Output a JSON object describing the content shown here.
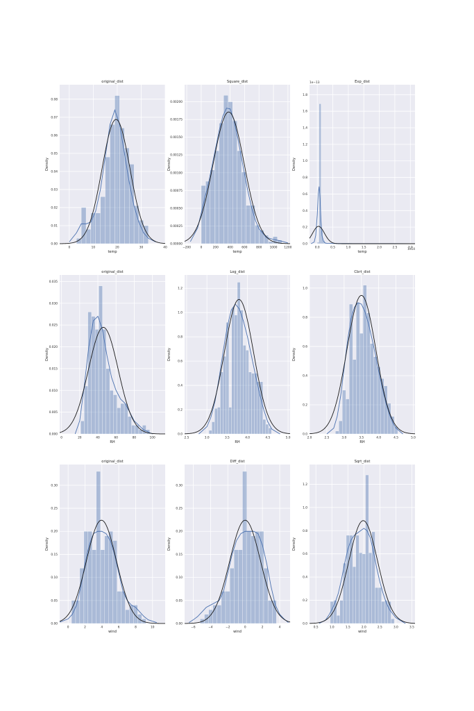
{
  "chart_data": [
    {
      "type": "histogram",
      "title": "original_dist",
      "xlabel": "temp",
      "ylabel": "Density",
      "xlim": [
        -4,
        40
      ],
      "ylim": [
        0,
        0.088
      ],
      "xticks": [
        0,
        10,
        20,
        30,
        40
      ],
      "xtick_labels": [
        "0",
        "10",
        "20",
        "30",
        "40"
      ],
      "yticks": [
        0,
        0.01,
        0.02,
        0.03,
        0.04,
        0.05,
        0.06,
        0.07,
        0.08
      ],
      "ytick_labels": [
        "0.00",
        "0.01",
        "0.02",
        "0.03",
        "0.04",
        "0.05",
        "0.06",
        "0.07",
        "0.08"
      ],
      "x_offset_label": "",
      "y_offset_label": "",
      "bin_edges": [
        3,
        5,
        7,
        9,
        11,
        13,
        15,
        17,
        19,
        21,
        23,
        25,
        27,
        29,
        31,
        33
      ],
      "density": [
        0.003,
        0.02,
        0.008,
        0.017,
        0.017,
        0.026,
        0.048,
        0.066,
        0.082,
        0.064,
        0.053,
        0.044,
        0.021,
        0.013,
        0.01
      ],
      "kde": {
        "x": [
          0,
          3,
          5,
          7,
          9,
          11,
          13,
          15,
          17,
          19,
          21,
          23,
          25,
          27,
          29,
          31,
          33,
          36
        ],
        "y": [
          0.001,
          0.006,
          0.011,
          0.011,
          0.012,
          0.018,
          0.03,
          0.048,
          0.066,
          0.074,
          0.066,
          0.05,
          0.034,
          0.021,
          0.012,
          0.006,
          0.003,
          0.001
        ]
      },
      "normal_fit": {
        "mean": 19.5,
        "std": 5.8
      }
    },
    {
      "type": "histogram",
      "title": "Square_dist",
      "xlabel": "temp",
      "ylabel": "Density",
      "xlim": [
        -230,
        1230
      ],
      "ylim": [
        0,
        0.00224
      ],
      "xticks": [
        -200,
        0,
        200,
        400,
        600,
        800,
        1000,
        1200
      ],
      "xtick_labels": [
        "−200",
        "0",
        "200",
        "400",
        "600",
        "800",
        "1000",
        "1200"
      ],
      "yticks": [
        0,
        0.00025,
        0.0005,
        0.00075,
        0.001,
        0.00125,
        0.0015,
        0.00175,
        0.002
      ],
      "ytick_labels": [
        "0.00000",
        "0.00025",
        "0.00050",
        "0.00075",
        "0.00100",
        "0.00125",
        "0.00150",
        "0.00175",
        "0.00200"
      ],
      "x_offset_label": "",
      "y_offset_label": "",
      "bin_edges": [
        0,
        62,
        124,
        186,
        248,
        310,
        372,
        434,
        496,
        558,
        620,
        682,
        744,
        806,
        868,
        930,
        992,
        1054,
        1116
      ],
      "density": [
        0.00082,
        0.00088,
        0.00104,
        0.00131,
        0.0017,
        0.00209,
        0.002,
        0.00173,
        0.00131,
        0.00101,
        0.00054,
        0.00054,
        0.00026,
        0.00019,
        0.00012,
        3e-05,
        0.0001,
        5e-05
      ],
      "kde": {
        "x": [
          -150,
          -50,
          0,
          50,
          100,
          150,
          200,
          250,
          300,
          350,
          400,
          450,
          500,
          550,
          600,
          650,
          700,
          750,
          800,
          900,
          1000,
          1100,
          1200
        ],
        "y": [
          3e-05,
          0.00022,
          0.00043,
          0.00065,
          0.00085,
          0.0011,
          0.00135,
          0.0016,
          0.0018,
          0.00191,
          0.0019,
          0.00175,
          0.00152,
          0.00125,
          0.00098,
          0.00072,
          0.0005,
          0.00033,
          0.00021,
          9e-05,
          6e-05,
          4e-05,
          1e-05
        ]
      },
      "normal_fit": {
        "mean": 380,
        "std": 215
      }
    },
    {
      "type": "histogram",
      "title": "Exp_dist",
      "xlabel": "temp",
      "ylabel": "Density",
      "xlim": [
        -2.5,
        31.5
      ],
      "ylim": [
        0,
        1.92
      ],
      "xticks": [
        0,
        5,
        10,
        15,
        20,
        25,
        30
      ],
      "xtick_labels": [
        "0.0",
        "0.5",
        "1.0",
        "1.5",
        "2.0",
        "2.5",
        "3.0"
      ],
      "yticks": [
        0,
        0.2,
        0.4,
        0.6,
        0.8,
        1.0,
        1.2,
        1.4,
        1.6,
        1.8
      ],
      "ytick_labels": [
        "0.0",
        "0.2",
        "0.4",
        "0.6",
        "0.8",
        "1.0",
        "1.2",
        "1.4",
        "1.6",
        "1.8"
      ],
      "x_offset_label": "1e14",
      "y_offset_label": "1e−13",
      "bin_edges": [
        0,
        0.6,
        1.2,
        1.8,
        2.4,
        3.0,
        3.6,
        4.2,
        4.8,
        5.4,
        6.0,
        6.6,
        7.2,
        7.8
      ],
      "density": [
        0.02,
        1.69,
        0.16,
        0.04,
        0.015,
        0.01,
        0.006,
        0.004,
        0.003,
        0.002,
        0.002,
        0.001,
        0.003
      ],
      "kde": {
        "x": [
          -2,
          -1,
          -0.5,
          0,
          0.3,
          0.6,
          0.9,
          1.2,
          1.5,
          2,
          2.5,
          3,
          4,
          5,
          7,
          10,
          15,
          20,
          25,
          30
        ],
        "y": [
          0.0,
          0.02,
          0.1,
          0.35,
          0.6,
          0.69,
          0.55,
          0.28,
          0.1,
          0.03,
          0.01,
          0.005,
          0.004,
          0.003,
          0.002,
          0.002,
          0.001,
          0.001,
          0.001,
          0.0
        ]
      },
      "normal_fit": {
        "mean": 0.4,
        "std": 1.9
      }
    },
    {
      "type": "histogram",
      "title": "original_dist",
      "xlabel": "RH",
      "ylabel": "Density",
      "xlim": [
        -2,
        114
      ],
      "ylim": [
        0,
        0.0365
      ],
      "xticks": [
        0,
        20,
        40,
        60,
        80,
        100
      ],
      "xtick_labels": [
        "0",
        "20",
        "40",
        "60",
        "80",
        "100"
      ],
      "yticks": [
        0,
        0.005,
        0.01,
        0.015,
        0.02,
        0.025,
        0.03,
        0.035
      ],
      "ytick_labels": [
        "0.000",
        "0.005",
        "0.010",
        "0.015",
        "0.020",
        "0.025",
        "0.030",
        "0.035"
      ],
      "x_offset_label": "",
      "y_offset_label": "",
      "bin_edges": [
        21,
        25,
        29,
        33,
        37,
        41,
        45,
        49,
        53,
        57,
        61,
        65,
        69,
        73,
        77,
        81,
        85,
        89,
        93,
        97
      ],
      "density": [
        0.003,
        0.011,
        0.028,
        0.027,
        0.024,
        0.034,
        0.024,
        0.015,
        0.01,
        0.009,
        0.006,
        0.007,
        0.007,
        0.004,
        0.002,
        0.002,
        0.001,
        0.002,
        0.001
      ],
      "kde": {
        "x": [
          15,
          20,
          25,
          30,
          35,
          40,
          45,
          50,
          55,
          60,
          65,
          70,
          75,
          80,
          85,
          90,
          95,
          100
        ],
        "y": [
          0.0,
          0.003,
          0.011,
          0.02,
          0.026,
          0.027,
          0.024,
          0.018,
          0.013,
          0.01,
          0.008,
          0.007,
          0.005,
          0.003,
          0.002,
          0.001,
          0.0005,
          0.0
        ]
      },
      "normal_fit": {
        "mean": 46,
        "std": 16.3
      }
    },
    {
      "type": "histogram",
      "title": "Log_dist",
      "xlabel": "RH",
      "ylabel": "Density",
      "xlim": [
        2.45,
        5.05
      ],
      "ylim": [
        0,
        1.31
      ],
      "xticks": [
        2.5,
        3.0,
        3.5,
        4.0,
        4.5,
        5.0
      ],
      "xtick_labels": [
        "2.5",
        "3.0",
        "3.5",
        "4.0",
        "4.5",
        "5.0"
      ],
      "yticks": [
        0,
        0.2,
        0.4,
        0.6,
        0.8,
        1.0,
        1.2
      ],
      "ytick_labels": [
        "0.0",
        "0.2",
        "0.4",
        "0.6",
        "0.8",
        "1.0",
        "1.2"
      ],
      "x_offset_label": "",
      "y_offset_label": "",
      "bin_edges": [
        3.05,
        3.12,
        3.19,
        3.26,
        3.33,
        3.4,
        3.47,
        3.54,
        3.61,
        3.68,
        3.75,
        3.82,
        3.89,
        3.96,
        4.03,
        4.1,
        4.17,
        4.24,
        4.31,
        4.38,
        4.45,
        4.52,
        4.59
      ],
      "density": [
        0.03,
        0.1,
        0.21,
        0.22,
        0.51,
        0.64,
        0.92,
        0.22,
        1.04,
        0.98,
        1.25,
        1.02,
        0.73,
        0.69,
        0.51,
        0.5,
        0.5,
        0.43,
        0.43,
        0.12,
        0.08,
        0.05
      ],
      "kde": {
        "x": [
          2.8,
          3.0,
          3.1,
          3.2,
          3.3,
          3.4,
          3.5,
          3.6,
          3.7,
          3.8,
          3.9,
          4.0,
          4.1,
          4.2,
          4.3,
          4.4,
          4.5,
          4.6,
          4.8
        ],
        "y": [
          0.0,
          0.06,
          0.14,
          0.27,
          0.46,
          0.68,
          0.88,
          1.02,
          1.07,
          1.03,
          0.93,
          0.8,
          0.64,
          0.48,
          0.33,
          0.2,
          0.1,
          0.04,
          0.0
        ]
      },
      "normal_fit": {
        "mean": 3.79,
        "std": 0.36
      }
    },
    {
      "type": "histogram",
      "title": "Cbrt_dist",
      "xlabel": "RH",
      "ylabel": "Density",
      "xlim": [
        2.0,
        5.05
      ],
      "ylim": [
        0,
        1.09
      ],
      "xticks": [
        2.0,
        2.5,
        3.0,
        3.5,
        4.0,
        4.5,
        5.0
      ],
      "xtick_labels": [
        "2.0",
        "2.5",
        "3.0",
        "3.5",
        "4.0",
        "4.5",
        "5.0"
      ],
      "yticks": [
        0,
        0.2,
        0.4,
        0.6,
        0.8,
        1.0
      ],
      "ytick_labels": [
        "0.0",
        "0.2",
        "0.4",
        "0.6",
        "0.8",
        "1.0"
      ],
      "x_offset_label": "",
      "y_offset_label": "",
      "bin_edges": [
        2.75,
        2.85,
        2.95,
        3.05,
        3.15,
        3.25,
        3.35,
        3.45,
        3.55,
        3.65,
        3.75,
        3.85,
        3.95,
        4.05,
        4.15,
        4.25,
        4.35,
        4.45,
        4.55
      ],
      "density": [
        0.02,
        0.09,
        0.3,
        0.24,
        0.89,
        0.51,
        0.9,
        0.69,
        1.02,
        0.83,
        0.62,
        0.53,
        0.46,
        0.38,
        0.33,
        0.21,
        0.12,
        0.05
      ],
      "kde": {
        "x": [
          2.5,
          2.7,
          2.8,
          2.9,
          3.0,
          3.1,
          3.2,
          3.3,
          3.4,
          3.5,
          3.6,
          3.7,
          3.8,
          3.9,
          4.0,
          4.1,
          4.2,
          4.3,
          4.4,
          4.5,
          4.7
        ],
        "y": [
          0.0,
          0.04,
          0.12,
          0.26,
          0.45,
          0.64,
          0.79,
          0.87,
          0.9,
          0.89,
          0.84,
          0.76,
          0.66,
          0.55,
          0.43,
          0.32,
          0.22,
          0.14,
          0.08,
          0.04,
          0.0
        ]
      },
      "normal_fit": {
        "mean": 3.5,
        "std": 0.42
      }
    },
    {
      "type": "histogram",
      "title": "original_dist",
      "xlabel": "wind",
      "ylabel": "Density",
      "xlim": [
        -1.0,
        11.5
      ],
      "ylim": [
        0,
        0.345
      ],
      "xticks": [
        0,
        2,
        4,
        6,
        8,
        10
      ],
      "xtick_labels": [
        "0",
        "2",
        "4",
        "6",
        "8",
        "10"
      ],
      "yticks": [
        0,
        0.05,
        0.1,
        0.15,
        0.2,
        0.25,
        0.3
      ],
      "ytick_labels": [
        "0.00",
        "0.05",
        "0.10",
        "0.15",
        "0.20",
        "0.25",
        "0.30"
      ],
      "x_offset_label": "",
      "y_offset_label": "",
      "bin_edges": [
        0.4,
        0.89,
        1.38,
        1.87,
        2.36,
        2.85,
        3.34,
        3.83,
        4.32,
        4.81,
        5.3,
        5.79,
        6.28,
        6.77,
        7.26,
        7.75,
        8.24,
        8.73,
        9.22
      ],
      "density": [
        0.05,
        0.05,
        0.12,
        0.2,
        0.2,
        0.16,
        0.33,
        0.16,
        0.19,
        0.2,
        0.18,
        0.07,
        0.07,
        0.03,
        0.04,
        0.04,
        0.02,
        0.01
      ],
      "kde": {
        "x": [
          -1,
          0,
          0.5,
          1,
          1.5,
          2,
          2.5,
          3,
          3.5,
          4,
          4.5,
          5,
          5.5,
          6,
          6.5,
          7,
          7.5,
          8,
          8.5,
          9,
          9.5,
          10.5
        ],
        "y": [
          0.003,
          0.01,
          0.02,
          0.04,
          0.08,
          0.13,
          0.17,
          0.195,
          0.2,
          0.2,
          0.195,
          0.18,
          0.15,
          0.11,
          0.07,
          0.05,
          0.04,
          0.035,
          0.025,
          0.015,
          0.008,
          0.002
        ]
      },
      "normal_fit": {
        "mean": 3.95,
        "std": 1.78
      }
    },
    {
      "type": "histogram",
      "title": "Diff_dist",
      "xlabel": "wind",
      "ylabel": "Density",
      "xlim": [
        -7.0,
        5.2
      ],
      "ylim": [
        0,
        0.345
      ],
      "xticks": [
        -6,
        -4,
        -2,
        0,
        2,
        4
      ],
      "xtick_labels": [
        "−6",
        "−4",
        "−2",
        "0",
        "2",
        "4"
      ],
      "yticks": [
        0,
        0.05,
        0.1,
        0.15,
        0.2,
        0.25,
        0.3
      ],
      "ytick_labels": [
        "0.00",
        "0.05",
        "0.10",
        "0.15",
        "0.20",
        "0.25",
        "0.30"
      ],
      "x_offset_label": "",
      "y_offset_label": "",
      "bin_edges": [
        -5.2,
        -4.71,
        -4.22,
        -3.73,
        -3.24,
        -2.75,
        -2.26,
        -1.77,
        -1.28,
        -0.79,
        -0.3,
        0.19,
        0.68,
        1.17,
        1.66,
        2.15,
        2.64,
        3.13,
        3.62
      ],
      "density": [
        0.01,
        0.02,
        0.03,
        0.04,
        0.04,
        0.07,
        0.07,
        0.12,
        0.16,
        0.16,
        0.33,
        0.2,
        0.19,
        0.2,
        0.2,
        0.12,
        0.05,
        0.05
      ],
      "kde": {
        "x": [
          -6.5,
          -6,
          -5.5,
          -5,
          -4.5,
          -4,
          -3.5,
          -3,
          -2.5,
          -2,
          -1.5,
          -1,
          -0.5,
          0,
          0.5,
          1,
          1.5,
          2,
          2.5,
          3,
          3.5,
          4,
          4.5,
          5
        ],
        "y": [
          0.002,
          0.008,
          0.015,
          0.025,
          0.035,
          0.04,
          0.045,
          0.05,
          0.07,
          0.11,
          0.15,
          0.18,
          0.195,
          0.2,
          0.2,
          0.2,
          0.195,
          0.17,
          0.13,
          0.08,
          0.04,
          0.02,
          0.01,
          0.002
        ]
      },
      "normal_fit": {
        "mean": 0.0,
        "std": 1.78
      }
    },
    {
      "type": "histogram",
      "title": "Sqrt_dist",
      "xlabel": "wind",
      "ylabel": "Density",
      "xlim": [
        0.3,
        3.6
      ],
      "ylim": [
        0,
        1.37
      ],
      "xticks": [
        0.5,
        1.0,
        1.5,
        2.0,
        2.5,
        3.0,
        3.5
      ],
      "xtick_labels": [
        "0.5",
        "1.0",
        "1.5",
        "2.0",
        "2.5",
        "3.0",
        "3.5"
      ],
      "yticks": [
        0,
        0.2,
        0.4,
        0.6,
        0.8,
        1.0,
        1.2
      ],
      "ytick_labels": [
        "0.0",
        "0.2",
        "0.4",
        "0.6",
        "0.8",
        "1.0",
        "1.2"
      ],
      "x_offset_label": "",
      "y_offset_label": "",
      "bin_edges": [
        0.95,
        1.05,
        1.15,
        1.25,
        1.35,
        1.45,
        1.55,
        1.65,
        1.75,
        1.85,
        1.95,
        2.05,
        2.15,
        2.25,
        2.35,
        2.45,
        2.55,
        2.65,
        2.75,
        2.85,
        2.95
      ],
      "density": [
        0.19,
        0.2,
        0.07,
        0.2,
        0.52,
        0.76,
        0.76,
        0.49,
        0.76,
        0.61,
        0.6,
        1.28,
        0.61,
        0.79,
        0.31,
        0.31,
        0.19,
        0.2,
        0.19,
        0.04
      ],
      "kde": {
        "x": [
          0.6,
          0.8,
          0.9,
          1.0,
          1.1,
          1.2,
          1.3,
          1.4,
          1.5,
          1.6,
          1.7,
          1.8,
          1.9,
          2.0,
          2.1,
          2.2,
          2.3,
          2.4,
          2.5,
          2.6,
          2.7,
          2.8,
          3.0,
          3.3
        ],
        "y": [
          0.0,
          0.03,
          0.07,
          0.12,
          0.18,
          0.26,
          0.38,
          0.52,
          0.64,
          0.72,
          0.76,
          0.78,
          0.8,
          0.82,
          0.8,
          0.74,
          0.62,
          0.48,
          0.36,
          0.26,
          0.18,
          0.12,
          0.05,
          0.0
        ]
      },
      "normal_fit": {
        "mean": 1.98,
        "std": 0.45
      }
    }
  ]
}
